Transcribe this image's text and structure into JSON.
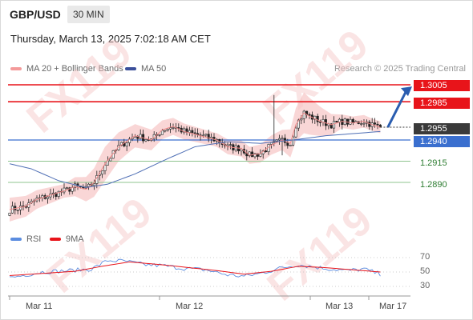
{
  "header": {
    "symbol": "GBP/USD",
    "timeframe": "30 MIN",
    "datetime": "Thursday, March 13, 2025 7:02:18 AM CET"
  },
  "legend": {
    "bb_label": "MA 20 + Bollinger Bands",
    "ma50_label": "MA 50",
    "credit": "Research © 2025 Trading Central"
  },
  "rsi_legend": {
    "rsi_label": "RSI",
    "ma_label": "9MA"
  },
  "colors": {
    "resistance": "#e8141a",
    "pivot": "#3a6fcf",
    "support": "#2e7d32",
    "up_candle": "#ffffff",
    "down_candle": "#222222",
    "bollinger": "#f6c5c5",
    "ma20": "#f08a8a",
    "ma50": "#4f6fb5",
    "arrow": "#2a5db0",
    "rsi": "#5b8de0",
    "rsi_ma": "#e8141a"
  },
  "levels": {
    "resistance": [
      {
        "value": 1.3005,
        "label": "1.3005"
      },
      {
        "value": 1.2985,
        "label": "1.2985"
      }
    ],
    "current": {
      "value": 1.2955,
      "label": "1.2955"
    },
    "pivot": {
      "value": 1.294,
      "label": "1.2940"
    },
    "support": [
      {
        "value": 1.2915,
        "label": "1.2915"
      },
      {
        "value": 1.289,
        "label": "1.2890"
      }
    ]
  },
  "rsi_ticks": [
    "70",
    "50",
    "30"
  ],
  "x_ticks": [
    "Mar 11",
    "Mar 12",
    "Mar 13",
    "Mar 17"
  ],
  "watermark": "FX119",
  "chart_data": {
    "type": "candlestick",
    "title": "GBP/USD 30 MIN",
    "ylim": [
      1.2855,
      1.301
    ],
    "x_range": [
      "Mar 11",
      "Mar 17"
    ],
    "anchors": [
      [
        0,
        1.2858
      ],
      [
        6,
        1.2862
      ],
      [
        10,
        1.287
      ],
      [
        16,
        1.2876
      ],
      [
        20,
        1.288
      ],
      [
        24,
        1.2885
      ],
      [
        28,
        1.2882
      ],
      [
        31,
        1.289
      ],
      [
        35,
        1.2912
      ],
      [
        40,
        1.2932
      ],
      [
        46,
        1.2945
      ],
      [
        52,
        1.294
      ],
      [
        56,
        1.2952
      ],
      [
        60,
        1.2956
      ],
      [
        64,
        1.295
      ],
      [
        70,
        1.2945
      ],
      [
        76,
        1.294
      ],
      [
        80,
        1.2932
      ],
      [
        85,
        1.293
      ],
      [
        88,
        1.2922
      ],
      [
        92,
        1.2924
      ],
      [
        96,
        1.2934
      ],
      [
        100,
        1.294
      ],
      [
        103,
        1.2936
      ],
      [
        105,
        1.2958
      ],
      [
        108,
        1.2972
      ],
      [
        110,
        1.2968
      ],
      [
        114,
        1.2962
      ],
      [
        118,
        1.2958
      ],
      [
        122,
        1.2962
      ],
      [
        126,
        1.296
      ],
      [
        130,
        1.2962
      ],
      [
        133,
        1.2958
      ],
      [
        136,
        1.2955
      ]
    ],
    "bollinger_halfwidth": [
      [
        0,
        0.0014
      ],
      [
        20,
        0.0008
      ],
      [
        35,
        0.002
      ],
      [
        45,
        0.0014
      ],
      [
        60,
        0.001
      ],
      [
        75,
        0.0008
      ],
      [
        88,
        0.001
      ],
      [
        100,
        0.0012
      ],
      [
        108,
        0.0024
      ],
      [
        122,
        0.0008
      ],
      [
        136,
        0.0007
      ]
    ],
    "ma50_anchors": [
      [
        0,
        1.2912
      ],
      [
        8,
        1.2906
      ],
      [
        18,
        1.2892
      ],
      [
        28,
        1.2884
      ],
      [
        36,
        1.2888
      ],
      [
        46,
        1.29
      ],
      [
        58,
        1.2918
      ],
      [
        68,
        1.2932
      ],
      [
        80,
        1.2938
      ],
      [
        92,
        1.2936
      ],
      [
        104,
        1.294
      ],
      [
        116,
        1.2945
      ],
      [
        136,
        1.295
      ]
    ],
    "forecast_arrow": {
      "from": [
        137,
        1.2955
      ],
      "to": [
        148,
        1.3003
      ]
    },
    "rsi": {
      "ylim": [
        25,
        80
      ],
      "rsi_anchors": [
        [
          0,
          42
        ],
        [
          12,
          50
        ],
        [
          22,
          52
        ],
        [
          30,
          54
        ],
        [
          36,
          66
        ],
        [
          42,
          65
        ],
        [
          50,
          60
        ],
        [
          56,
          59
        ],
        [
          64,
          55
        ],
        [
          72,
          53
        ],
        [
          80,
          46
        ],
        [
          86,
          44
        ],
        [
          92,
          48
        ],
        [
          100,
          56
        ],
        [
          106,
          60
        ],
        [
          110,
          58
        ],
        [
          118,
          54
        ],
        [
          124,
          52
        ],
        [
          130,
          54
        ],
        [
          136,
          47
        ]
      ],
      "ma_anchors": [
        [
          0,
          45
        ],
        [
          12,
          48
        ],
        [
          24,
          51
        ],
        [
          34,
          58
        ],
        [
          44,
          64
        ],
        [
          56,
          60
        ],
        [
          66,
          56
        ],
        [
          76,
          52
        ],
        [
          86,
          47
        ],
        [
          96,
          51
        ],
        [
          106,
          58
        ],
        [
          116,
          56
        ],
        [
          126,
          53
        ],
        [
          136,
          50
        ]
      ]
    }
  }
}
